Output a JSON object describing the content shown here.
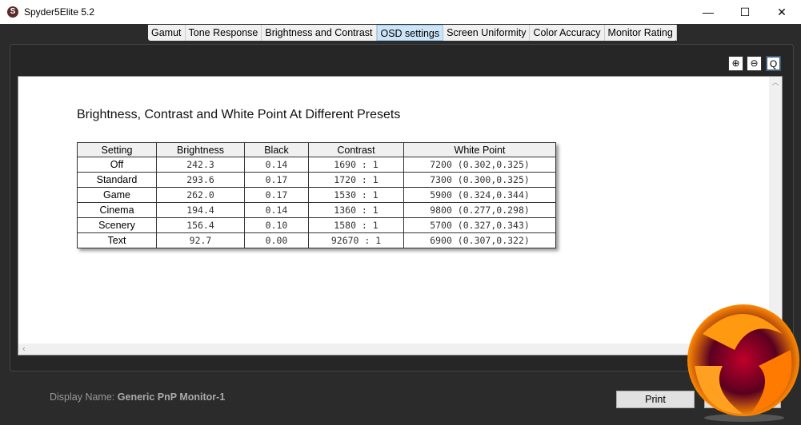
{
  "window": {
    "title": "Spyder5Elite 5.2",
    "minimize": "—",
    "maximize": "☐",
    "close": "✕"
  },
  "tabs": [
    {
      "label": "Gamut"
    },
    {
      "label": "Tone Response"
    },
    {
      "label": "Brightness and Contrast"
    },
    {
      "label": "OSD settings",
      "active": true
    },
    {
      "label": "Screen Uniformity"
    },
    {
      "label": "Color Accuracy"
    },
    {
      "label": "Monitor Rating"
    }
  ],
  "zoom": {
    "in": "⊕",
    "out": "⊖",
    "fit": "Q"
  },
  "report": {
    "title": "Brightness, Contrast and White Point At Different Presets",
    "columns": [
      "Setting",
      "Brightness",
      "Black",
      "Contrast",
      "White Point"
    ],
    "rows": [
      [
        "Off",
        "242.3",
        "0.14",
        "1690 : 1",
        "7200 (0.302,0.325)"
      ],
      [
        "Standard",
        "293.6",
        "0.17",
        "1720 : 1",
        "7300 (0.300,0.325)"
      ],
      [
        "Game",
        "262.0",
        "0.17",
        "1530 : 1",
        "5900 (0.324,0.344)"
      ],
      [
        "Cinema",
        "194.4",
        "0.14",
        "1360 : 1",
        "9800 (0.277,0.298)"
      ],
      [
        "Scenery",
        "156.4",
        "0.10",
        "1580 : 1",
        "5700 (0.327,0.343)"
      ],
      [
        "Text",
        "92.7",
        "0.00",
        "92670 : 1",
        "6900 (0.307,0.322)"
      ]
    ]
  },
  "footer": {
    "display_label": "Display Name:",
    "display_name": "Generic PnP Monitor-1",
    "print": "Print"
  }
}
